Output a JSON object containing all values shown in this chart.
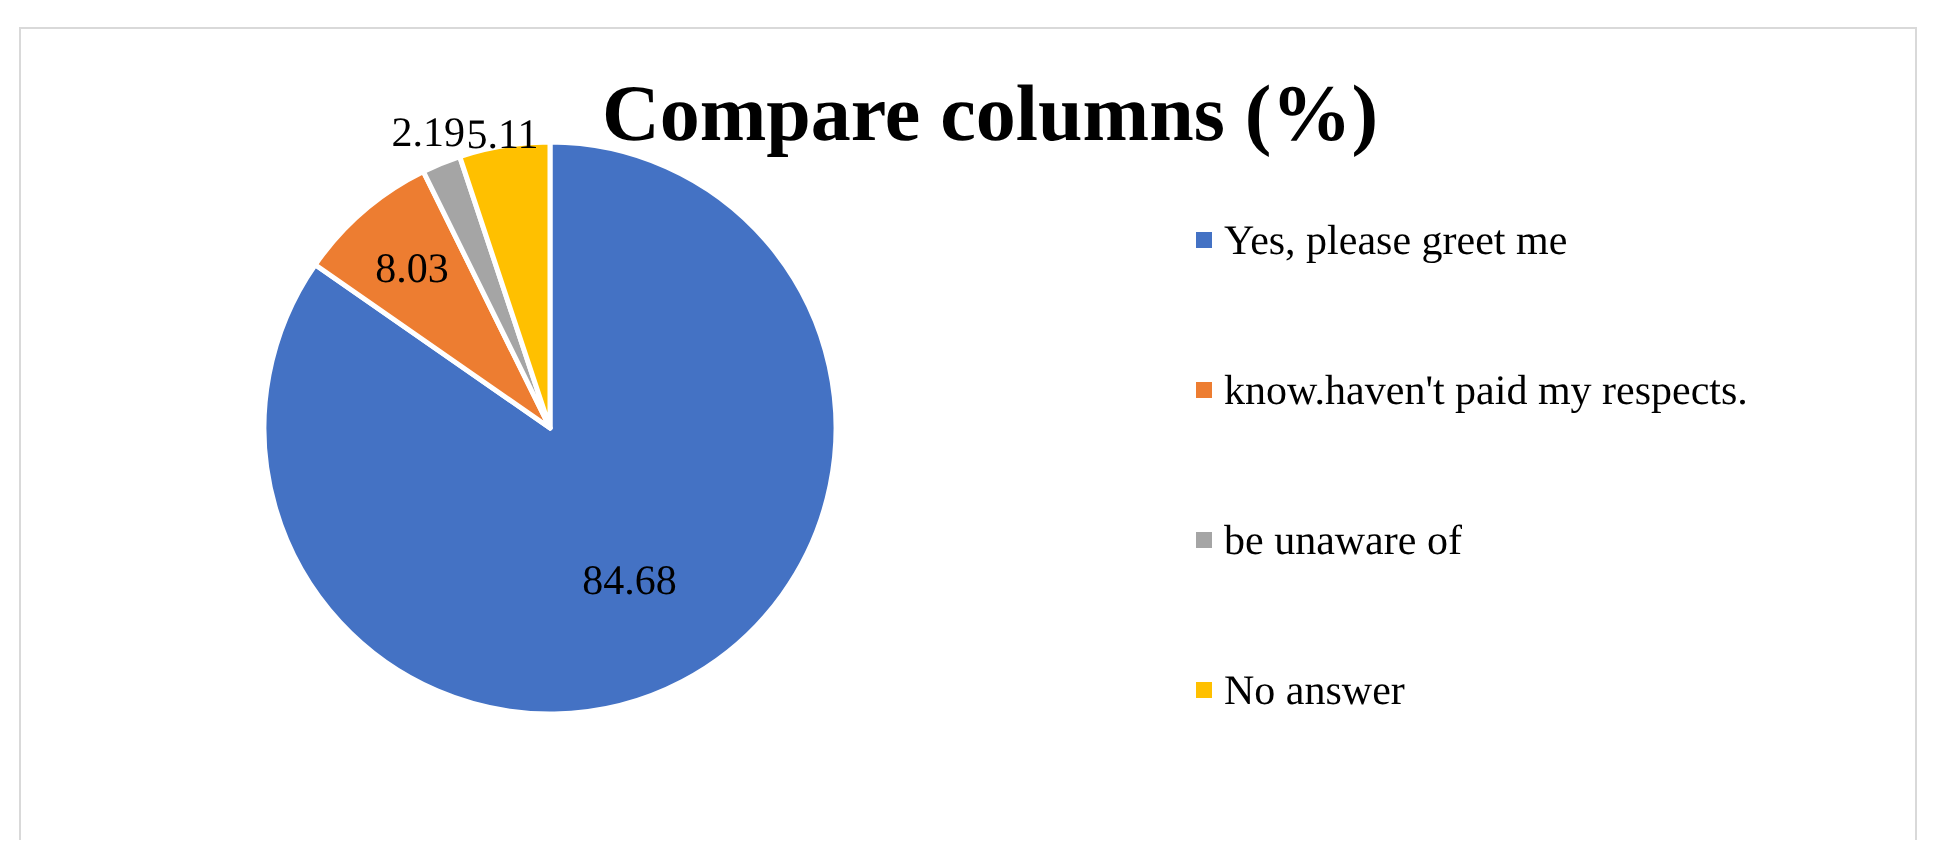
{
  "chart_data": {
    "type": "pie",
    "title": "Compare columns (%)",
    "categories": [
      "Yes, please greet me",
      "know.haven't paid my respects.",
      "be unaware of",
      "No answer"
    ],
    "values": [
      84.68,
      8.03,
      2.19,
      5.11
    ],
    "colors": [
      "#4472c4",
      "#ed7d31",
      "#a5a5a5",
      "#ffc000"
    ],
    "data_labels": true,
    "legend": "right"
  }
}
